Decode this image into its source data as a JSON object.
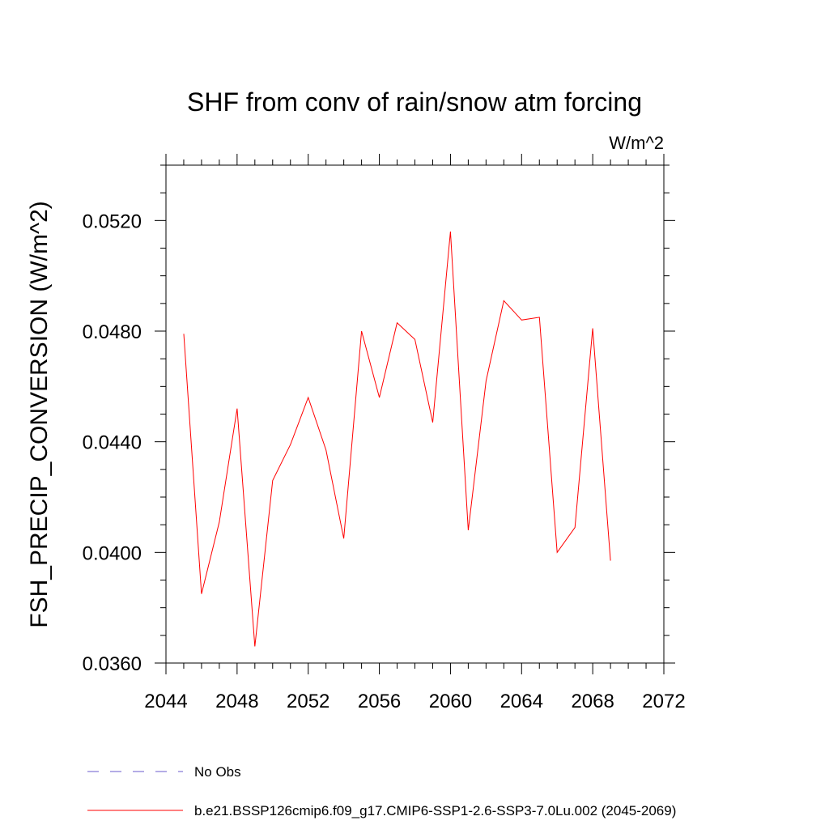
{
  "chart_data": {
    "type": "line",
    "title": "SHF from conv of rain/snow atm forcing",
    "units_label": "W/m^2",
    "xlabel": "",
    "ylabel": "FSH_PRECIP_CONVERSION  (W/m^2)",
    "xlim": [
      2044,
      2072
    ],
    "ylim": [
      0.036,
      0.054
    ],
    "x_ticks": [
      2044,
      2048,
      2052,
      2056,
      2060,
      2064,
      2068,
      2072
    ],
    "x_tick_labels": [
      "2044",
      "2048",
      "2052",
      "2056",
      "2060",
      "2064",
      "2068",
      "2072"
    ],
    "y_ticks": [
      0.036,
      0.04,
      0.044,
      0.048,
      0.052
    ],
    "y_tick_labels": [
      "0.0360",
      "0.0400",
      "0.0440",
      "0.0480",
      "0.0520"
    ],
    "grid": false,
    "legend_position": "bottom",
    "series": [
      {
        "name": "b.e21.BSSP126cmip6.f09_g17.CMIP6-SSP1-2.6-SSP3-7.0Lu.002 (2045-2069)",
        "color": "#ff0000",
        "style": "solid",
        "x": [
          2045,
          2046,
          2047,
          2048,
          2049,
          2050,
          2051,
          2052,
          2053,
          2054,
          2055,
          2056,
          2057,
          2058,
          2059,
          2060,
          2061,
          2062,
          2063,
          2064,
          2065,
          2066,
          2067,
          2068,
          2069
        ],
        "values": [
          0.0479,
          0.0385,
          0.0411,
          0.0452,
          0.0366,
          0.0426,
          0.0439,
          0.0456,
          0.0437,
          0.0405,
          0.048,
          0.0456,
          0.0483,
          0.0477,
          0.0447,
          0.0516,
          0.0408,
          0.0462,
          0.0491,
          0.0484,
          0.0485,
          0.04,
          0.0409,
          0.0481,
          0.0397
        ]
      }
    ]
  },
  "legend": {
    "items": [
      {
        "label": "No Obs",
        "color": "#6a5acd",
        "style": "dashed"
      },
      {
        "label": "b.e21.BSSP126cmip6.f09_g17.CMIP6-SSP1-2.6-SSP3-7.0Lu.002 (2045-2069)",
        "color": "#ff0000",
        "style": "solid"
      }
    ]
  }
}
